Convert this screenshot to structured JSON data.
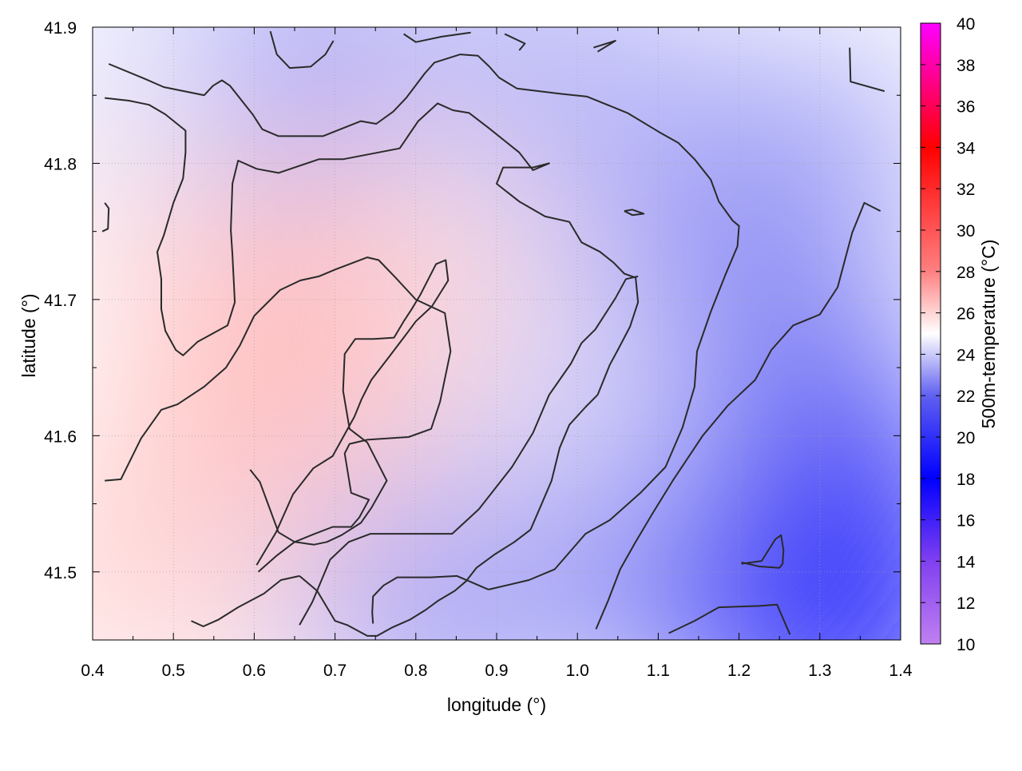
{
  "chart_data": {
    "type": "heatmap",
    "title": "",
    "xlabel": "longitude (°)",
    "ylabel": "latitude (°)",
    "colorbar_label": "500m-temperature (°C)",
    "xlim": [
      0.4,
      1.4
    ],
    "ylim": [
      41.45,
      41.9
    ],
    "x_ticks": [
      0.4,
      0.5,
      0.6,
      0.7,
      0.8,
      0.9,
      1.0,
      1.1,
      1.2,
      1.3,
      1.4
    ],
    "y_ticks": [
      41.5,
      41.6,
      41.7,
      41.8,
      41.9
    ],
    "x_tick_labels": [
      "0.4",
      "0.5",
      "0.6",
      "0.7",
      "0.8",
      "0.9",
      "1.0",
      "1.1",
      "1.2",
      "1.3",
      "1.4"
    ],
    "y_tick_labels": [
      "41.5",
      "41.6",
      "41.7",
      "41.8",
      "41.9"
    ],
    "grid": true,
    "colorbar": {
      "range": [
        10,
        40
      ],
      "ticks": [
        10,
        12,
        14,
        16,
        18,
        20,
        22,
        24,
        26,
        28,
        30,
        32,
        34,
        36,
        38,
        40
      ],
      "tick_labels": [
        "10",
        "12",
        "14",
        "16",
        "18",
        "20",
        "22",
        "24",
        "26",
        "28",
        "30",
        "32",
        "34",
        "36",
        "38",
        "40"
      ],
      "stops": [
        {
          "value": 10,
          "color": "#c080f0"
        },
        {
          "value": 14,
          "color": "#8040f0"
        },
        {
          "value": 18,
          "color": "#0000ff"
        },
        {
          "value": 22,
          "color": "#6060f0"
        },
        {
          "value": 25,
          "color": "#ffffff"
        },
        {
          "value": 28,
          "color": "#ff8080"
        },
        {
          "value": 34,
          "color": "#ff0000"
        },
        {
          "value": 37,
          "color": "#ff0080"
        },
        {
          "value": 40,
          "color": "#ff00ff"
        }
      ]
    },
    "field_points": [
      {
        "lon": 0.5,
        "lat": 41.78,
        "temp": 26.0
      },
      {
        "lon": 0.55,
        "lat": 41.58,
        "temp": 26.2
      },
      {
        "lon": 0.68,
        "lat": 41.63,
        "temp": 27.0
      },
      {
        "lon": 0.72,
        "lat": 41.7,
        "temp": 26.8
      },
      {
        "lon": 0.85,
        "lat": 41.72,
        "temp": 26.3
      },
      {
        "lon": 0.7,
        "lat": 41.5,
        "temp": 25.8
      },
      {
        "lon": 0.88,
        "lat": 41.6,
        "temp": 25.8
      },
      {
        "lon": 0.9,
        "lat": 41.8,
        "temp": 25.6
      },
      {
        "lon": 0.62,
        "lat": 41.88,
        "temp": 23.0
      },
      {
        "lon": 0.95,
        "lat": 41.88,
        "temp": 23.6
      },
      {
        "lon": 1.1,
        "lat": 41.8,
        "temp": 23.6
      },
      {
        "lon": 1.28,
        "lat": 41.8,
        "temp": 23.3
      },
      {
        "lon": 1.2,
        "lat": 41.68,
        "temp": 22.5
      },
      {
        "lon": 1.3,
        "lat": 41.58,
        "temp": 20.5
      },
      {
        "lon": 1.22,
        "lat": 41.5,
        "temp": 18.8
      },
      {
        "lon": 1.32,
        "lat": 41.47,
        "temp": 18.2
      },
      {
        "lon": 1.1,
        "lat": 41.53,
        "temp": 21.5
      },
      {
        "lon": 1.02,
        "lat": 41.62,
        "temp": 24.2
      },
      {
        "lon": 0.82,
        "lat": 41.47,
        "temp": 23.2
      },
      {
        "lon": 0.42,
        "lat": 41.87,
        "temp": 24.6
      },
      {
        "lon": 0.45,
        "lat": 41.5,
        "temp": 26.0
      }
    ],
    "contours": [
      [
        [
          0.42,
          41.873
        ],
        [
          0.465,
          41.862
        ],
        [
          0.488,
          41.856
        ],
        [
          0.538,
          41.85
        ],
        [
          0.549,
          41.857
        ],
        [
          0.56,
          41.861
        ],
        [
          0.57,
          41.857
        ],
        [
          0.598,
          41.836
        ],
        [
          0.61,
          41.825
        ],
        [
          0.63,
          41.82
        ],
        [
          0.685,
          41.82
        ],
        [
          0.732,
          41.831
        ],
        [
          0.751,
          41.829
        ],
        [
          0.772,
          41.838
        ],
        [
          0.788,
          41.848
        ],
        [
          0.811,
          41.866
        ],
        [
          0.823,
          41.874
        ],
        [
          0.855,
          41.88
        ],
        [
          0.877,
          41.879
        ],
        [
          0.891,
          41.871
        ],
        [
          0.903,
          41.863
        ],
        [
          0.925,
          41.855
        ],
        [
          0.98,
          41.851
        ],
        [
          1.012,
          41.849
        ],
        [
          1.062,
          41.837
        ],
        [
          1.101,
          41.823
        ],
        [
          1.125,
          41.815
        ],
        [
          1.145,
          41.803
        ],
        [
          1.165,
          41.788
        ],
        [
          1.175,
          41.772
        ],
        [
          1.192,
          41.758
        ],
        [
          1.2,
          41.754
        ],
        [
          1.198,
          41.739
        ],
        [
          1.183,
          41.718
        ],
        [
          1.165,
          41.691
        ],
        [
          1.148,
          41.662
        ],
        [
          1.145,
          41.636
        ],
        [
          1.13,
          41.606
        ],
        [
          1.109,
          41.577
        ],
        [
          1.078,
          41.558
        ],
        [
          1.04,
          41.538
        ],
        [
          1.01,
          41.528
        ],
        [
          0.972,
          41.502
        ],
        [
          0.94,
          41.494
        ],
        [
          0.89,
          41.487
        ]
      ],
      [
        [
          0.89,
          41.487
        ],
        [
          0.851,
          41.497
        ],
        [
          0.818,
          41.496
        ],
        [
          0.777,
          41.496
        ],
        [
          0.76,
          41.49
        ],
        [
          0.747,
          41.482
        ],
        [
          0.746,
          41.47
        ],
        [
          0.747,
          41.462
        ]
      ],
      [
        [
          0.415,
          41.848
        ],
        [
          0.445,
          41.846
        ],
        [
          0.47,
          41.843
        ],
        [
          0.49,
          41.836
        ],
        [
          0.515,
          41.824
        ],
        [
          0.515,
          41.808
        ],
        [
          0.512,
          41.789
        ],
        [
          0.5,
          41.771
        ],
        [
          0.488,
          41.747
        ],
        [
          0.48,
          41.735
        ],
        [
          0.485,
          41.715
        ],
        [
          0.485,
          41.693
        ],
        [
          0.49,
          41.677
        ],
        [
          0.503,
          41.663
        ],
        [
          0.512,
          41.659
        ],
        [
          0.53,
          41.669
        ],
        [
          0.567,
          41.681
        ],
        [
          0.576,
          41.698
        ],
        [
          0.573,
          41.733
        ],
        [
          0.571,
          41.751
        ],
        [
          0.573,
          41.785
        ],
        [
          0.58,
          41.802
        ],
        [
          0.603,
          41.796
        ],
        [
          0.63,
          41.793
        ],
        [
          0.68,
          41.803
        ],
        [
          0.71,
          41.803
        ],
        [
          0.78,
          41.811
        ],
        [
          0.803,
          41.831
        ],
        [
          0.827,
          41.844
        ],
        [
          0.846,
          41.839
        ],
        [
          0.866,
          41.837
        ],
        [
          0.89,
          41.826
        ],
        [
          0.928,
          41.808
        ],
        [
          0.945,
          41.795
        ],
        [
          0.965,
          41.8
        ],
        [
          0.945,
          41.797
        ],
        [
          0.908,
          41.797
        ],
        [
          0.9,
          41.785
        ],
        [
          0.928,
          41.772
        ],
        [
          0.96,
          41.761
        ],
        [
          0.99,
          41.757
        ],
        [
          1.005,
          41.742
        ],
        [
          1.028,
          41.735
        ],
        [
          1.045,
          41.727
        ],
        [
          1.058,
          41.719
        ],
        [
          1.072,
          41.716
        ],
        [
          1.075,
          41.698
        ],
        [
          1.065,
          41.68
        ],
        [
          1.05,
          41.663
        ],
        [
          1.04,
          41.652
        ],
        [
          1.025,
          41.63
        ],
        [
          1.01,
          41.621
        ],
        [
          0.99,
          41.608
        ],
        [
          0.978,
          41.591
        ],
        [
          0.968,
          41.567
        ],
        [
          0.955,
          41.549
        ],
        [
          0.942,
          41.531
        ],
        [
          0.922,
          41.522
        ],
        [
          0.898,
          41.513
        ],
        [
          0.875,
          41.503
        ],
        [
          0.862,
          41.493
        ],
        [
          0.848,
          41.486
        ],
        [
          0.828,
          41.479
        ],
        [
          0.812,
          41.472
        ],
        [
          0.793,
          41.465
        ],
        [
          0.77,
          41.459
        ],
        [
          0.752,
          41.453
        ],
        [
          0.74,
          41.453
        ],
        [
          0.715,
          41.461
        ],
        [
          0.7,
          41.464
        ],
        [
          0.69,
          41.474
        ],
        [
          0.678,
          41.486
        ],
        [
          0.656,
          41.497
        ]
      ],
      [
        [
          0.656,
          41.497
        ],
        [
          0.633,
          41.494
        ],
        [
          0.612,
          41.484
        ],
        [
          0.58,
          41.474
        ],
        [
          0.556,
          41.465
        ],
        [
          0.537,
          41.46
        ],
        [
          0.522,
          41.464
        ]
      ],
      [
        [
          0.656,
          41.461
        ],
        [
          0.672,
          41.478
        ],
        [
          0.694,
          41.509
        ],
        [
          0.717,
          41.522
        ],
        [
          0.744,
          41.528
        ],
        [
          0.799,
          41.528
        ],
        [
          0.845,
          41.528
        ],
        [
          0.878,
          41.546
        ],
        [
          0.919,
          41.577
        ],
        [
          0.945,
          41.602
        ],
        [
          0.965,
          41.63
        ],
        [
          0.992,
          41.653
        ],
        [
          1.005,
          41.668
        ],
        [
          1.022,
          41.678
        ],
        [
          1.047,
          41.701
        ],
        [
          1.06,
          41.715
        ],
        [
          1.075,
          41.717
        ]
      ],
      [
        [
          0.603,
          41.505
        ],
        [
          0.627,
          41.529
        ],
        [
          0.648,
          41.557
        ],
        [
          0.673,
          41.576
        ],
        [
          0.697,
          41.585
        ],
        [
          0.724,
          41.614
        ],
        [
          0.733,
          41.627
        ],
        [
          0.745,
          41.641
        ],
        [
          0.767,
          41.658
        ],
        [
          0.79,
          41.676
        ],
        [
          0.8,
          41.684
        ],
        [
          0.82,
          41.695
        ],
        [
          0.84,
          41.714
        ],
        [
          0.837,
          41.729
        ],
        [
          0.825,
          41.726
        ],
        [
          0.806,
          41.704
        ],
        [
          0.795,
          41.693
        ],
        [
          0.785,
          41.684
        ],
        [
          0.773,
          41.672
        ],
        [
          0.748,
          41.671
        ],
        [
          0.725,
          41.671
        ],
        [
          0.712,
          41.66
        ],
        [
          0.71,
          41.633
        ],
        [
          0.718,
          41.605
        ],
        [
          0.74,
          41.595
        ],
        [
          0.764,
          41.567
        ],
        [
          0.745,
          41.547
        ],
        [
          0.732,
          41.536
        ],
        [
          0.708,
          41.527
        ],
        [
          0.69,
          41.522
        ],
        [
          0.674,
          41.52
        ],
        [
          0.65,
          41.522
        ],
        [
          0.63,
          41.529
        ],
        [
          0.617,
          41.55
        ],
        [
          0.607,
          41.566
        ],
        [
          0.595,
          41.575
        ]
      ],
      [
        [
          0.415,
          41.567
        ],
        [
          0.435,
          41.568
        ],
        [
          0.46,
          41.598
        ],
        [
          0.485,
          41.619
        ],
        [
          0.505,
          41.623
        ],
        [
          0.538,
          41.636
        ],
        [
          0.565,
          41.65
        ],
        [
          0.582,
          41.666
        ],
        [
          0.6,
          41.688
        ],
        [
          0.632,
          41.707
        ],
        [
          0.657,
          41.714
        ],
        [
          0.68,
          41.717
        ],
        [
          0.7,
          41.722
        ],
        [
          0.74,
          41.731
        ],
        [
          0.754,
          41.729
        ],
        [
          0.775,
          41.716
        ],
        [
          0.8,
          41.7
        ],
        [
          0.836,
          41.69
        ],
        [
          0.843,
          41.662
        ],
        [
          0.83,
          41.625
        ],
        [
          0.819,
          41.605
        ],
        [
          0.791,
          41.599
        ],
        [
          0.74,
          41.597
        ],
        [
          0.718,
          41.594
        ],
        [
          0.712,
          41.587
        ],
        [
          0.72,
          41.558
        ],
        [
          0.742,
          41.553
        ],
        [
          0.73,
          41.54
        ],
        [
          0.72,
          41.533
        ],
        [
          0.697,
          41.533
        ],
        [
          0.675,
          41.528
        ],
        [
          0.65,
          41.522
        ],
        [
          0.628,
          41.512
        ],
        [
          0.605,
          41.5
        ]
      ],
      [
        [
          1.023,
          41.458
        ],
        [
          1.038,
          41.479
        ],
        [
          1.053,
          41.502
        ],
        [
          1.072,
          41.522
        ],
        [
          1.092,
          41.542
        ],
        [
          1.118,
          41.567
        ],
        [
          1.155,
          41.6
        ],
        [
          1.186,
          41.622
        ],
        [
          1.22,
          41.641
        ],
        [
          1.24,
          41.663
        ],
        [
          1.267,
          41.681
        ],
        [
          1.3,
          41.689
        ],
        [
          1.322,
          41.709
        ],
        [
          1.34,
          41.749
        ],
        [
          1.355,
          41.771
        ],
        [
          1.375,
          41.765
        ]
      ],
      [
        [
          1.113,
          41.455
        ],
        [
          1.145,
          41.464
        ],
        [
          1.175,
          41.474
        ],
        [
          1.225,
          41.475
        ],
        [
          1.247,
          41.476
        ],
        [
          1.263,
          41.454
        ]
      ],
      [
        [
          1.203,
          41.506
        ],
        [
          1.228,
          41.508
        ],
        [
          1.245,
          41.524
        ],
        [
          1.252,
          41.527
        ],
        [
          1.255,
          41.516
        ],
        [
          1.254,
          41.506
        ],
        [
          1.25,
          41.503
        ],
        [
          1.225,
          41.504
        ],
        [
          1.203,
          41.507
        ]
      ],
      [
        [
          0.415,
          41.771
        ],
        [
          0.42,
          41.767
        ],
        [
          0.419,
          41.752
        ],
        [
          0.412,
          41.75
        ]
      ],
      [
        [
          0.62,
          41.897
        ],
        [
          0.628,
          41.88
        ],
        [
          0.644,
          41.87
        ],
        [
          0.67,
          41.871
        ],
        [
          0.688,
          41.88
        ],
        [
          0.698,
          41.89
        ]
      ],
      [
        [
          0.785,
          41.895
        ],
        [
          0.8,
          41.889
        ],
        [
          0.832,
          41.893
        ],
        [
          0.868,
          41.896
        ]
      ],
      [
        [
          0.91,
          41.895
        ],
        [
          0.935,
          41.888
        ],
        [
          0.928,
          41.883
        ]
      ],
      [
        [
          1.02,
          41.885
        ],
        [
          1.047,
          41.89
        ],
        [
          1.025,
          41.882
        ]
      ],
      [
        [
          1.337,
          41.885
        ],
        [
          1.338,
          41.86
        ],
        [
          1.38,
          41.853
        ]
      ],
      [
        [
          1.058,
          41.765
        ],
        [
          1.068,
          41.766
        ],
        [
          1.082,
          41.763
        ],
        [
          1.068,
          41.762
        ],
        [
          1.058,
          41.765
        ]
      ]
    ]
  }
}
